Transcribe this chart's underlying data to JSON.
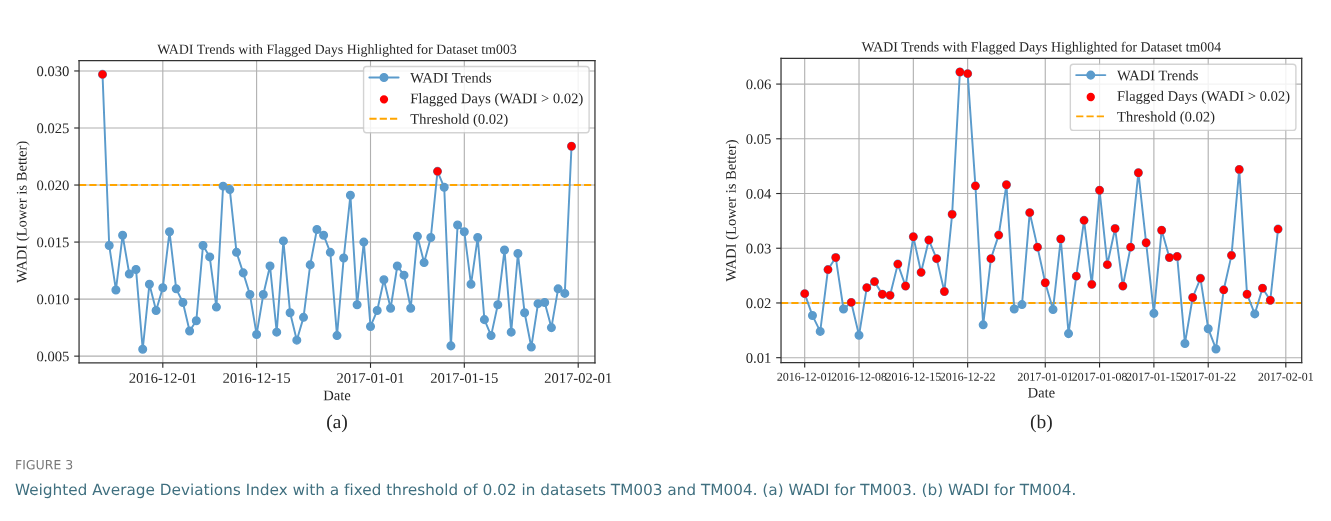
{
  "chart_data": [
    {
      "type": "line",
      "title": "WADI Trends with Flagged Days Highlighted for Dataset tm003",
      "xlabel": "Date",
      "ylabel": "WADI (Lower is Better)",
      "marker": "circle",
      "grid": true,
      "legend": "top right",
      "xlim": [
        "2016-11-18T12:00",
        "2017-02-03T12:00"
      ],
      "xticks": [
        {
          "value": "2016-12-01",
          "label": "2016-12-01"
        },
        {
          "value": "2016-12-15",
          "label": "2016-12-15"
        },
        {
          "value": "2017-01-01",
          "label": "2017-01-01"
        },
        {
          "value": "2017-01-15",
          "label": "2017-01-15"
        },
        {
          "value": "2017-02-01",
          "label": "2017-02-01"
        }
      ],
      "ylim": [
        0.0044,
        0.0309
      ],
      "yticks": [
        {
          "value": 0.005,
          "label": "0.005"
        },
        {
          "value": 0.01,
          "label": "0.010"
        },
        {
          "value": 0.015,
          "label": "0.015"
        },
        {
          "value": 0.02,
          "label": "0.020"
        },
        {
          "value": 0.025,
          "label": "0.025"
        },
        {
          "value": 0.03,
          "label": "0.030"
        }
      ],
      "series": [
        {
          "name": "WADI Trends",
          "line_style": "solid",
          "color": "#5b9bcc",
          "x": [
            "2016-11-22",
            "2016-11-23",
            "2016-11-24",
            "2016-11-25",
            "2016-11-26",
            "2016-11-27",
            "2016-11-28",
            "2016-11-29",
            "2016-11-30",
            "2016-12-01",
            "2016-12-02",
            "2016-12-03",
            "2016-12-04",
            "2016-12-05",
            "2016-12-06",
            "2016-12-07",
            "2016-12-08",
            "2016-12-09",
            "2016-12-10",
            "2016-12-11",
            "2016-12-12",
            "2016-12-13",
            "2016-12-14",
            "2016-12-15",
            "2016-12-16",
            "2016-12-17",
            "2016-12-18",
            "2016-12-19",
            "2016-12-20",
            "2016-12-21",
            "2016-12-22",
            "2016-12-23",
            "2016-12-24",
            "2016-12-25",
            "2016-12-26",
            "2016-12-27",
            "2016-12-28",
            "2016-12-29",
            "2016-12-30",
            "2016-12-31",
            "2017-01-01",
            "2017-01-02",
            "2017-01-03",
            "2017-01-04",
            "2017-01-05",
            "2017-01-06",
            "2017-01-07",
            "2017-01-08",
            "2017-01-09",
            "2017-01-10",
            "2017-01-11",
            "2017-01-12",
            "2017-01-13",
            "2017-01-14",
            "2017-01-15",
            "2017-01-16",
            "2017-01-17",
            "2017-01-18",
            "2017-01-19",
            "2017-01-20",
            "2017-01-21",
            "2017-01-22",
            "2017-01-23",
            "2017-01-24",
            "2017-01-25",
            "2017-01-26",
            "2017-01-27",
            "2017-01-28",
            "2017-01-29",
            "2017-01-30",
            "2017-01-31"
          ],
          "values": [
            0.0297,
            0.0147,
            0.0108,
            0.0156,
            0.0122,
            0.0126,
            0.0056,
            0.0113,
            0.009,
            0.011,
            0.0159,
            0.0109,
            0.0097,
            0.0072,
            0.0081,
            0.0147,
            0.0137,
            0.0093,
            0.0199,
            0.0196,
            0.0141,
            0.0123,
            0.0104,
            0.0069,
            0.0104,
            0.0129,
            0.0071,
            0.0151,
            0.0088,
            0.0064,
            0.0084,
            0.013,
            0.0161,
            0.0156,
            0.0141,
            0.0068,
            0.0136,
            0.0191,
            0.0095,
            0.015,
            0.0076,
            0.009,
            0.0117,
            0.0092,
            0.0129,
            0.0121,
            0.0092,
            0.0155,
            0.0132,
            0.0154,
            0.0212,
            0.0198,
            0.0059,
            0.0165,
            0.0159,
            0.0113,
            0.0154,
            0.0082,
            0.0068,
            0.0095,
            0.0143,
            0.0071,
            0.014,
            0.0088,
            0.0058,
            0.0096,
            0.0097,
            0.0075,
            0.0109,
            0.0105,
            0.0234
          ]
        },
        {
          "name": "Flagged Days (WADI > 0.02)",
          "type": "scatter",
          "color": "#ff0000",
          "x": [
            "2016-11-22",
            "2017-01-11",
            "2017-01-31"
          ],
          "values": [
            0.0297,
            0.0212,
            0.0234
          ]
        }
      ],
      "ref_lines": [
        {
          "axis": "y",
          "value": 0.02,
          "label": "Threshold (0.02)",
          "color": "#ffa500",
          "line_style": "dashed"
        }
      ],
      "annotations": [
        "(a)",
        "FIGURE 3",
        "Weighted Average Deviations Index with a fixed threshold of 0.02 in datasets TM003 and TM004. (a) WADI for TM003. (b) WADI for TM004."
      ]
    },
    {
      "type": "line",
      "title": "WADI Trends with Flagged Days Highlighted for Dataset tm004",
      "xlabel": "Date",
      "ylabel": "WADI (Lower is Better)",
      "marker": "circle",
      "grid": true,
      "legend": "top right",
      "xlim": [
        "2016-11-27T22:48",
        "2017-02-03T01:12"
      ],
      "xticks": [
        {
          "value": "2016-12-01",
          "label": "2016-12-01"
        },
        {
          "value": "2016-12-08",
          "label": "2016-12-08"
        },
        {
          "value": "2016-12-15",
          "label": "2016-12-15"
        },
        {
          "value": "2016-12-22",
          "label": "2016-12-22"
        },
        {
          "value": "2017-01-01",
          "label": "2017-01-01"
        },
        {
          "value": "2017-01-08",
          "label": "2017-01-08"
        },
        {
          "value": "2017-01-15",
          "label": "2017-01-15"
        },
        {
          "value": "2017-01-22",
          "label": "2017-01-22"
        },
        {
          "value": "2017-02-01",
          "label": "2017-02-01"
        }
      ],
      "ylim": [
        0.0091,
        0.0647
      ],
      "yticks": [
        0.01,
        0.02,
        0.03,
        0.04,
        0.05,
        0.06
      ],
      "series": [
        {
          "name": "WADI Trends",
          "line_style": "solid",
          "color": "#5b9bcc",
          "x": [
            "2016-12-01",
            "2016-12-02",
            "2016-12-03",
            "2016-12-04",
            "2016-12-05",
            "2016-12-06",
            "2016-12-07",
            "2016-12-08",
            "2016-12-09",
            "2016-12-10",
            "2016-12-11",
            "2016-12-12",
            "2016-12-13",
            "2016-12-14",
            "2016-12-15",
            "2016-12-16",
            "2016-12-17",
            "2016-12-18",
            "2016-12-19",
            "2016-12-20",
            "2016-12-21",
            "2016-12-22",
            "2016-12-23",
            "2016-12-24",
            "2016-12-25",
            "2016-12-26",
            "2016-12-27",
            "2016-12-28",
            "2016-12-29",
            "2016-12-30",
            "2016-12-31",
            "2017-01-01",
            "2017-01-02",
            "2017-01-03",
            "2017-01-04",
            "2017-01-05",
            "2017-01-06",
            "2017-01-07",
            "2017-01-08",
            "2017-01-09",
            "2017-01-10",
            "2017-01-11",
            "2017-01-12",
            "2017-01-13",
            "2017-01-14",
            "2017-01-15",
            "2017-01-16",
            "2017-01-17",
            "2017-01-18",
            "2017-01-19",
            "2017-01-20",
            "2017-01-21",
            "2017-01-22",
            "2017-01-23",
            "2017-01-24",
            "2017-01-25",
            "2017-01-26",
            "2017-01-27",
            "2017-01-28",
            "2017-01-29",
            "2017-01-30",
            "2017-01-31"
          ],
          "values": [
            0.0217,
            0.0177,
            0.0148,
            0.0261,
            0.0283,
            0.0189,
            0.0201,
            0.0141,
            0.0228,
            0.0239,
            0.0216,
            0.0214,
            0.0271,
            0.0231,
            0.0321,
            0.0256,
            0.0315,
            0.0281,
            0.0221,
            0.0362,
            0.0622,
            0.0619,
            0.0414,
            0.016,
            0.0281,
            0.0324,
            0.0416,
            0.0189,
            0.0197,
            0.0365,
            0.0302,
            0.0237,
            0.0188,
            0.0317,
            0.0144,
            0.0249,
            0.0351,
            0.0234,
            0.0406,
            0.027,
            0.0336,
            0.0231,
            0.0302,
            0.0438,
            0.031,
            0.0181,
            0.0333,
            0.0283,
            0.0285,
            0.0126,
            0.021,
            0.0245,
            0.0153,
            0.0116,
            0.0224,
            0.0287,
            0.0444,
            0.0216,
            0.018,
            0.0227,
            0.0205,
            0.0335
          ]
        },
        {
          "name": "Flagged Days (WADI > 0.02)",
          "type": "scatter",
          "color": "#ff0000",
          "x": [
            "2016-12-01",
            "2016-12-04",
            "2016-12-05",
            "2016-12-07",
            "2016-12-09",
            "2016-12-10",
            "2016-12-11",
            "2016-12-12",
            "2016-12-13",
            "2016-12-14",
            "2016-12-15",
            "2016-12-16",
            "2016-12-17",
            "2016-12-18",
            "2016-12-19",
            "2016-12-20",
            "2016-12-21",
            "2016-12-22",
            "2016-12-23",
            "2016-12-25",
            "2016-12-26",
            "2016-12-27",
            "2016-12-30",
            "2016-12-31",
            "2017-01-01",
            "2017-01-03",
            "2017-01-05",
            "2017-01-06",
            "2017-01-07",
            "2017-01-08",
            "2017-01-09",
            "2017-01-10",
            "2017-01-11",
            "2017-01-12",
            "2017-01-13",
            "2017-01-14",
            "2017-01-16",
            "2017-01-17",
            "2017-01-18",
            "2017-01-20",
            "2017-01-21",
            "2017-01-24",
            "2017-01-25",
            "2017-01-26",
            "2017-01-27",
            "2017-01-29",
            "2017-01-30",
            "2017-01-31"
          ],
          "values": [
            0.0217,
            0.0261,
            0.0283,
            0.0201,
            0.0228,
            0.0239,
            0.0216,
            0.0214,
            0.0271,
            0.0231,
            0.0321,
            0.0256,
            0.0315,
            0.0281,
            0.0221,
            0.0362,
            0.0622,
            0.0619,
            0.0414,
            0.0281,
            0.0324,
            0.0416,
            0.0365,
            0.0302,
            0.0237,
            0.0317,
            0.0249,
            0.0351,
            0.0234,
            0.0406,
            0.027,
            0.0336,
            0.0231,
            0.0302,
            0.0438,
            0.031,
            0.0333,
            0.0283,
            0.0285,
            0.021,
            0.0245,
            0.0224,
            0.0287,
            0.0444,
            0.0216,
            0.0227,
            0.0205,
            0.0335
          ]
        }
      ],
      "ref_lines": [
        {
          "axis": "y",
          "value": 0.02,
          "label": "Threshold (0.02)",
          "color": "#ffa500",
          "line_style": "dashed"
        }
      ],
      "annotations": [
        "(b)"
      ]
    }
  ]
}
